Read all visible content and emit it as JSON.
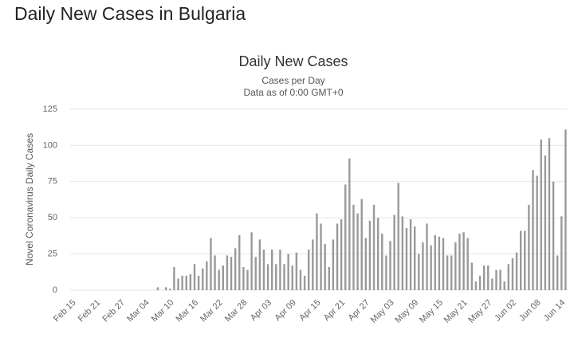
{
  "page_title": "Daily New Cases in Bulgaria",
  "chart_data": {
    "type": "bar",
    "title": "Daily New Cases",
    "subtitle": [
      "Cases per Day",
      "Data as of 0:00 GMT+0"
    ],
    "y_label": "Novel Coronavirus Daily Cases",
    "color": "#999999",
    "grid": true,
    "ylim": [
      0,
      125
    ],
    "yticks": [
      0,
      25,
      50,
      75,
      100,
      125
    ],
    "categories": [
      "Feb 15",
      null,
      null,
      null,
      null,
      null,
      "Feb 21",
      null,
      null,
      null,
      null,
      null,
      "Feb 27",
      null,
      null,
      null,
      null,
      null,
      "Mar 04",
      null,
      null,
      null,
      null,
      null,
      "Mar 10",
      null,
      null,
      null,
      null,
      null,
      "Mar 16",
      null,
      null,
      null,
      null,
      null,
      "Mar 22",
      null,
      null,
      null,
      null,
      null,
      "Mar 28",
      null,
      null,
      null,
      null,
      null,
      "Apr 03",
      null,
      null,
      null,
      null,
      null,
      "Apr 09",
      null,
      null,
      null,
      null,
      null,
      "Apr 15",
      null,
      null,
      null,
      null,
      null,
      "Apr 21",
      null,
      null,
      null,
      null,
      null,
      "Apr 27",
      null,
      null,
      null,
      null,
      null,
      "May 03",
      null,
      null,
      null,
      null,
      null,
      "May 09",
      null,
      null,
      null,
      null,
      null,
      "May 15",
      null,
      null,
      null,
      null,
      null,
      "May 21",
      null,
      null,
      null,
      null,
      null,
      "May 27",
      null,
      null,
      null,
      null,
      null,
      "Jun 02",
      null,
      null,
      null,
      null,
      null,
      "Jun 08",
      null,
      null,
      null,
      null,
      null,
      "Jun 14",
      null
    ],
    "values": [
      0,
      0,
      0,
      0,
      0,
      0,
      0,
      0,
      0,
      0,
      0,
      0,
      0,
      0,
      0,
      0,
      0,
      0,
      0,
      0,
      0,
      2,
      0,
      2,
      1,
      16,
      8,
      10,
      10,
      11,
      18,
      10,
      15,
      20,
      36,
      24,
      14,
      17,
      24,
      23,
      29,
      38,
      16,
      14,
      40,
      23,
      35,
      28,
      18,
      28,
      18,
      28,
      18,
      25,
      17,
      26,
      14,
      10,
      28,
      35,
      53,
      46,
      32,
      16,
      35,
      46,
      49,
      73,
      91,
      59,
      53,
      63,
      36,
      48,
      59,
      50,
      39,
      24,
      34,
      52,
      74,
      51,
      43,
      49,
      44,
      25,
      33,
      46,
      31,
      38,
      37,
      36,
      24,
      24,
      33,
      39,
      40,
      36,
      19,
      6,
      10,
      17,
      17,
      8,
      14,
      14,
      6,
      18,
      22,
      26,
      41,
      41,
      59,
      83,
      79,
      104,
      93,
      105,
      75,
      24,
      51,
      111
    ]
  }
}
